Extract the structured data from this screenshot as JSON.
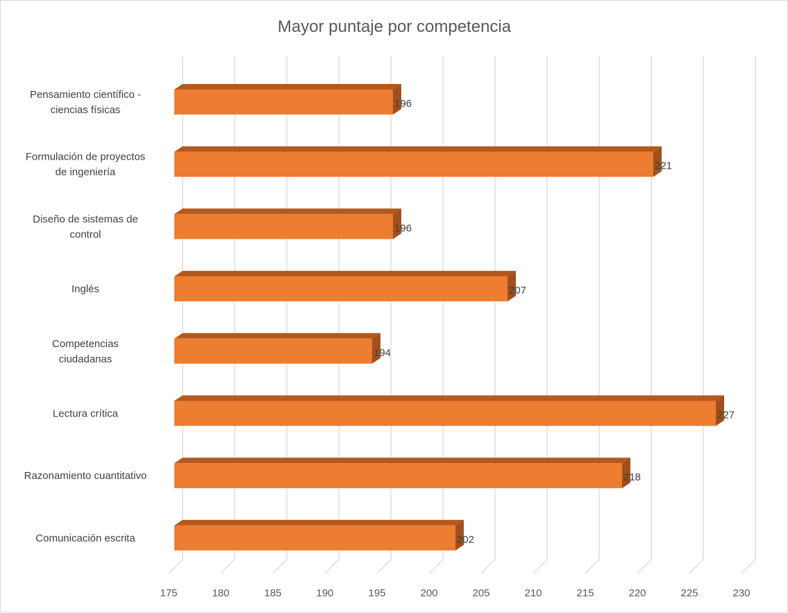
{
  "chart_data": {
    "type": "bar",
    "orientation": "horizontal",
    "style": "3d-clustered-bar",
    "title": "Mayor puntaje por competencia",
    "categories": [
      [
        "Pensamiento científico -",
        "ciencias físicas"
      ],
      [
        "Formulación de proyectos",
        "de ingeniería"
      ],
      [
        "Diseño de sistemas de",
        "control"
      ],
      [
        "Inglés"
      ],
      [
        "Competencias",
        "ciudadanas"
      ],
      [
        "Lectura crítica"
      ],
      [
        "Razonamiento cuantitativo"
      ],
      [
        "Comunicación escrita"
      ]
    ],
    "values": [
      196,
      221,
      196,
      207,
      194,
      227,
      218,
      202
    ],
    "xlim": [
      175,
      230
    ],
    "xticks": [
      175,
      180,
      185,
      190,
      195,
      200,
      205,
      210,
      215,
      220,
      225,
      230
    ],
    "grid": true,
    "legend": "none",
    "data_labels": true,
    "colors": {
      "bar_front": "#ED7D31",
      "bar_top": "#B5581F",
      "bar_side": "#A0501C",
      "grid": "#D9D9D9"
    }
  }
}
